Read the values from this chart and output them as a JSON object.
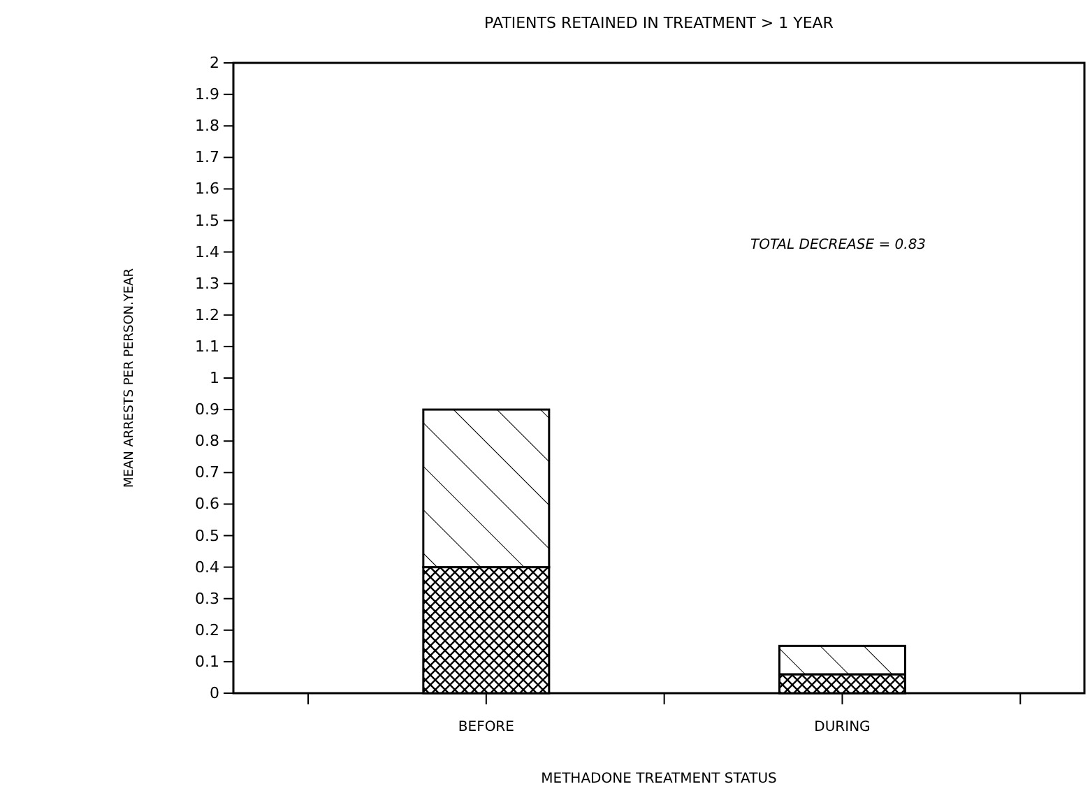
{
  "chart_data": {
    "type": "bar",
    "title": "PATIENTS RETAINED IN TREATMENT > 1 YEAR",
    "xlabel": "METHADONE TREATMENT STATUS",
    "ylabel": "MEAN ARRESTS PER PERSON.YEAR",
    "categories": [
      "BEFORE",
      "DURING"
    ],
    "stacked": true,
    "series": [
      {
        "color": "#000000",
        "values": [
          0.4,
          0.06
        ]
      },
      {
        "color": "#000000",
        "values": [
          0.5,
          0.09
        ]
      }
    ],
    "ylim": [
      0,
      2
    ],
    "yticks": [
      0,
      {
        "value": 0.1,
        "label": "0.1"
      },
      {
        "value": 0.2,
        "label": "0.2"
      },
      {
        "value": 0.3,
        "label": "0.3"
      },
      {
        "value": 0.4,
        "label": "0.4"
      },
      {
        "value": 0.5,
        "label": "0.5"
      },
      {
        "value": 0.6,
        "label": "0.6"
      },
      {
        "value": 0.7,
        "label": "0.7"
      },
      {
        "value": 0.8,
        "label": "0.8"
      },
      {
        "value": 0.9,
        "label": "0.9"
      },
      1,
      1.1,
      1.2,
      1.3,
      1.4,
      1.5,
      1.6,
      1.7,
      1.8,
      1.9,
      2
    ],
    "annotations": [
      "TOTAL DECREASE = 0.83"
    ]
  }
}
